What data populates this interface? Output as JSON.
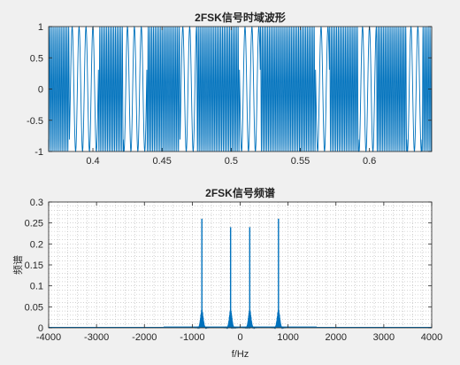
{
  "chart_data": [
    {
      "type": "line",
      "title": "2FSK信号时域波形",
      "xlabel": "",
      "ylabel": "",
      "xlim": [
        0.368,
        0.645
      ],
      "ylim": [
        -1,
        1
      ],
      "x_ticks": [
        0.4,
        0.45,
        0.5,
        0.55,
        0.6
      ],
      "x_tick_labels": [
        "0.4",
        "0.45",
        "0.5",
        "0.55",
        "0.6"
      ],
      "y_ticks": [
        -1,
        -0.5,
        0,
        0.5,
        1
      ],
      "y_tick_labels": [
        "-1",
        "-0.5",
        "0",
        "0.5",
        "1"
      ],
      "grid": false,
      "series": [
        {
          "color": "#0072bd",
          "amplitude": 1,
          "carrier_freqs_hz": [
            800,
            200
          ],
          "segments": [
            {
              "x0": 0.368,
              "x1": 0.383,
              "freq_hz": 800
            },
            {
              "x0": 0.383,
              "x1": 0.404,
              "freq_hz": 200
            },
            {
              "x0": 0.404,
              "x1": 0.422,
              "freq_hz": 800
            },
            {
              "x0": 0.422,
              "x1": 0.439,
              "freq_hz": 200
            },
            {
              "x0": 0.439,
              "x1": 0.463,
              "freq_hz": 800
            },
            {
              "x0": 0.463,
              "x1": 0.475,
              "freq_hz": 200
            },
            {
              "x0": 0.475,
              "x1": 0.506,
              "freq_hz": 800
            },
            {
              "x0": 0.506,
              "x1": 0.521,
              "freq_hz": 200
            },
            {
              "x0": 0.521,
              "x1": 0.561,
              "freq_hz": 800
            },
            {
              "x0": 0.561,
              "x1": 0.571,
              "freq_hz": 200
            },
            {
              "x0": 0.571,
              "x1": 0.592,
              "freq_hz": 800
            },
            {
              "x0": 0.592,
              "x1": 0.605,
              "freq_hz": 200
            },
            {
              "x0": 0.605,
              "x1": 0.627,
              "freq_hz": 800
            },
            {
              "x0": 0.627,
              "x1": 0.638,
              "freq_hz": 200
            },
            {
              "x0": 0.638,
              "x1": 0.645,
              "freq_hz": 800
            }
          ]
        }
      ]
    },
    {
      "type": "line",
      "title": "2FSK信号频谱",
      "xlabel": "f/Hz",
      "ylabel": "频谱",
      "xlim": [
        -4000,
        4000
      ],
      "ylim": [
        0,
        0.3
      ],
      "x_ticks": [
        -4000,
        -3000,
        -2000,
        -1000,
        0,
        1000,
        2000,
        3000,
        4000
      ],
      "x_tick_labels": [
        "-4000",
        "-3000",
        "-2000",
        "-1000",
        "0",
        "1000",
        "2000",
        "3000",
        "4000"
      ],
      "y_ticks": [
        0,
        0.05,
        0.1,
        0.15,
        0.2,
        0.25,
        0.3
      ],
      "y_tick_labels": [
        "0",
        "0.05",
        "0.1",
        "0.15",
        "0.2",
        "0.25",
        "0.3"
      ],
      "grid": true,
      "grid_style": "dotted-minor",
      "series": [
        {
          "color": "#0072bd",
          "peaks": [
            {
              "f": -800,
              "value": 0.26,
              "lobe": 0.045
            },
            {
              "f": -200,
              "value": 0.24,
              "lobe": 0.045
            },
            {
              "f": 200,
              "value": 0.24,
              "lobe": 0.045
            },
            {
              "f": 800,
              "value": 0.26,
              "lobe": 0.045
            }
          ],
          "floor_value": 0.003,
          "floor_extent_hz": 1600
        }
      ]
    }
  ]
}
